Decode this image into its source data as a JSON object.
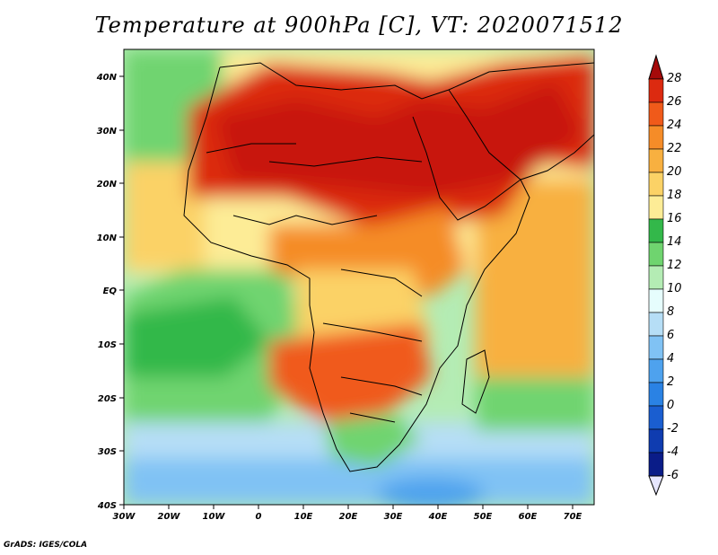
{
  "title": "Temperature at 900hPa [C], VT: 2020071512",
  "footer": "GrADS: IGES/COLA",
  "lon_labels": [
    "30W",
    "20W",
    "10W",
    "0",
    "10E",
    "20E",
    "30E",
    "40E",
    "50E",
    "60E",
    "70E"
  ],
  "lat_labels": [
    "40N",
    "30N",
    "20N",
    "10N",
    "EQ",
    "10S",
    "20S",
    "30S",
    "40S"
  ],
  "colorbar": {
    "labels": [
      "28",
      "26",
      "24",
      "22",
      "20",
      "18",
      "16",
      "14",
      "12",
      "10",
      "8",
      "6",
      "4",
      "2",
      "0",
      "-2",
      "-4",
      "-6"
    ],
    "colors": [
      "#a50a0a",
      "#dc2a10",
      "#f05a1a",
      "#f58c28",
      "#f8b040",
      "#fbd266",
      "#fdec96",
      "#33b84a",
      "#6fd46f",
      "#b4ecb4",
      "#e6fdfd",
      "#b6def6",
      "#80c2f4",
      "#4ea2ee",
      "#2a82e4",
      "#1a5ed0",
      "#0f3cb0",
      "#0a1c88"
    ]
  },
  "map": {
    "lon_range": [
      -30,
      75
    ],
    "lat_range": [
      -40,
      45
    ],
    "variable": "Temperature at 900hPa",
    "units": "C"
  }
}
